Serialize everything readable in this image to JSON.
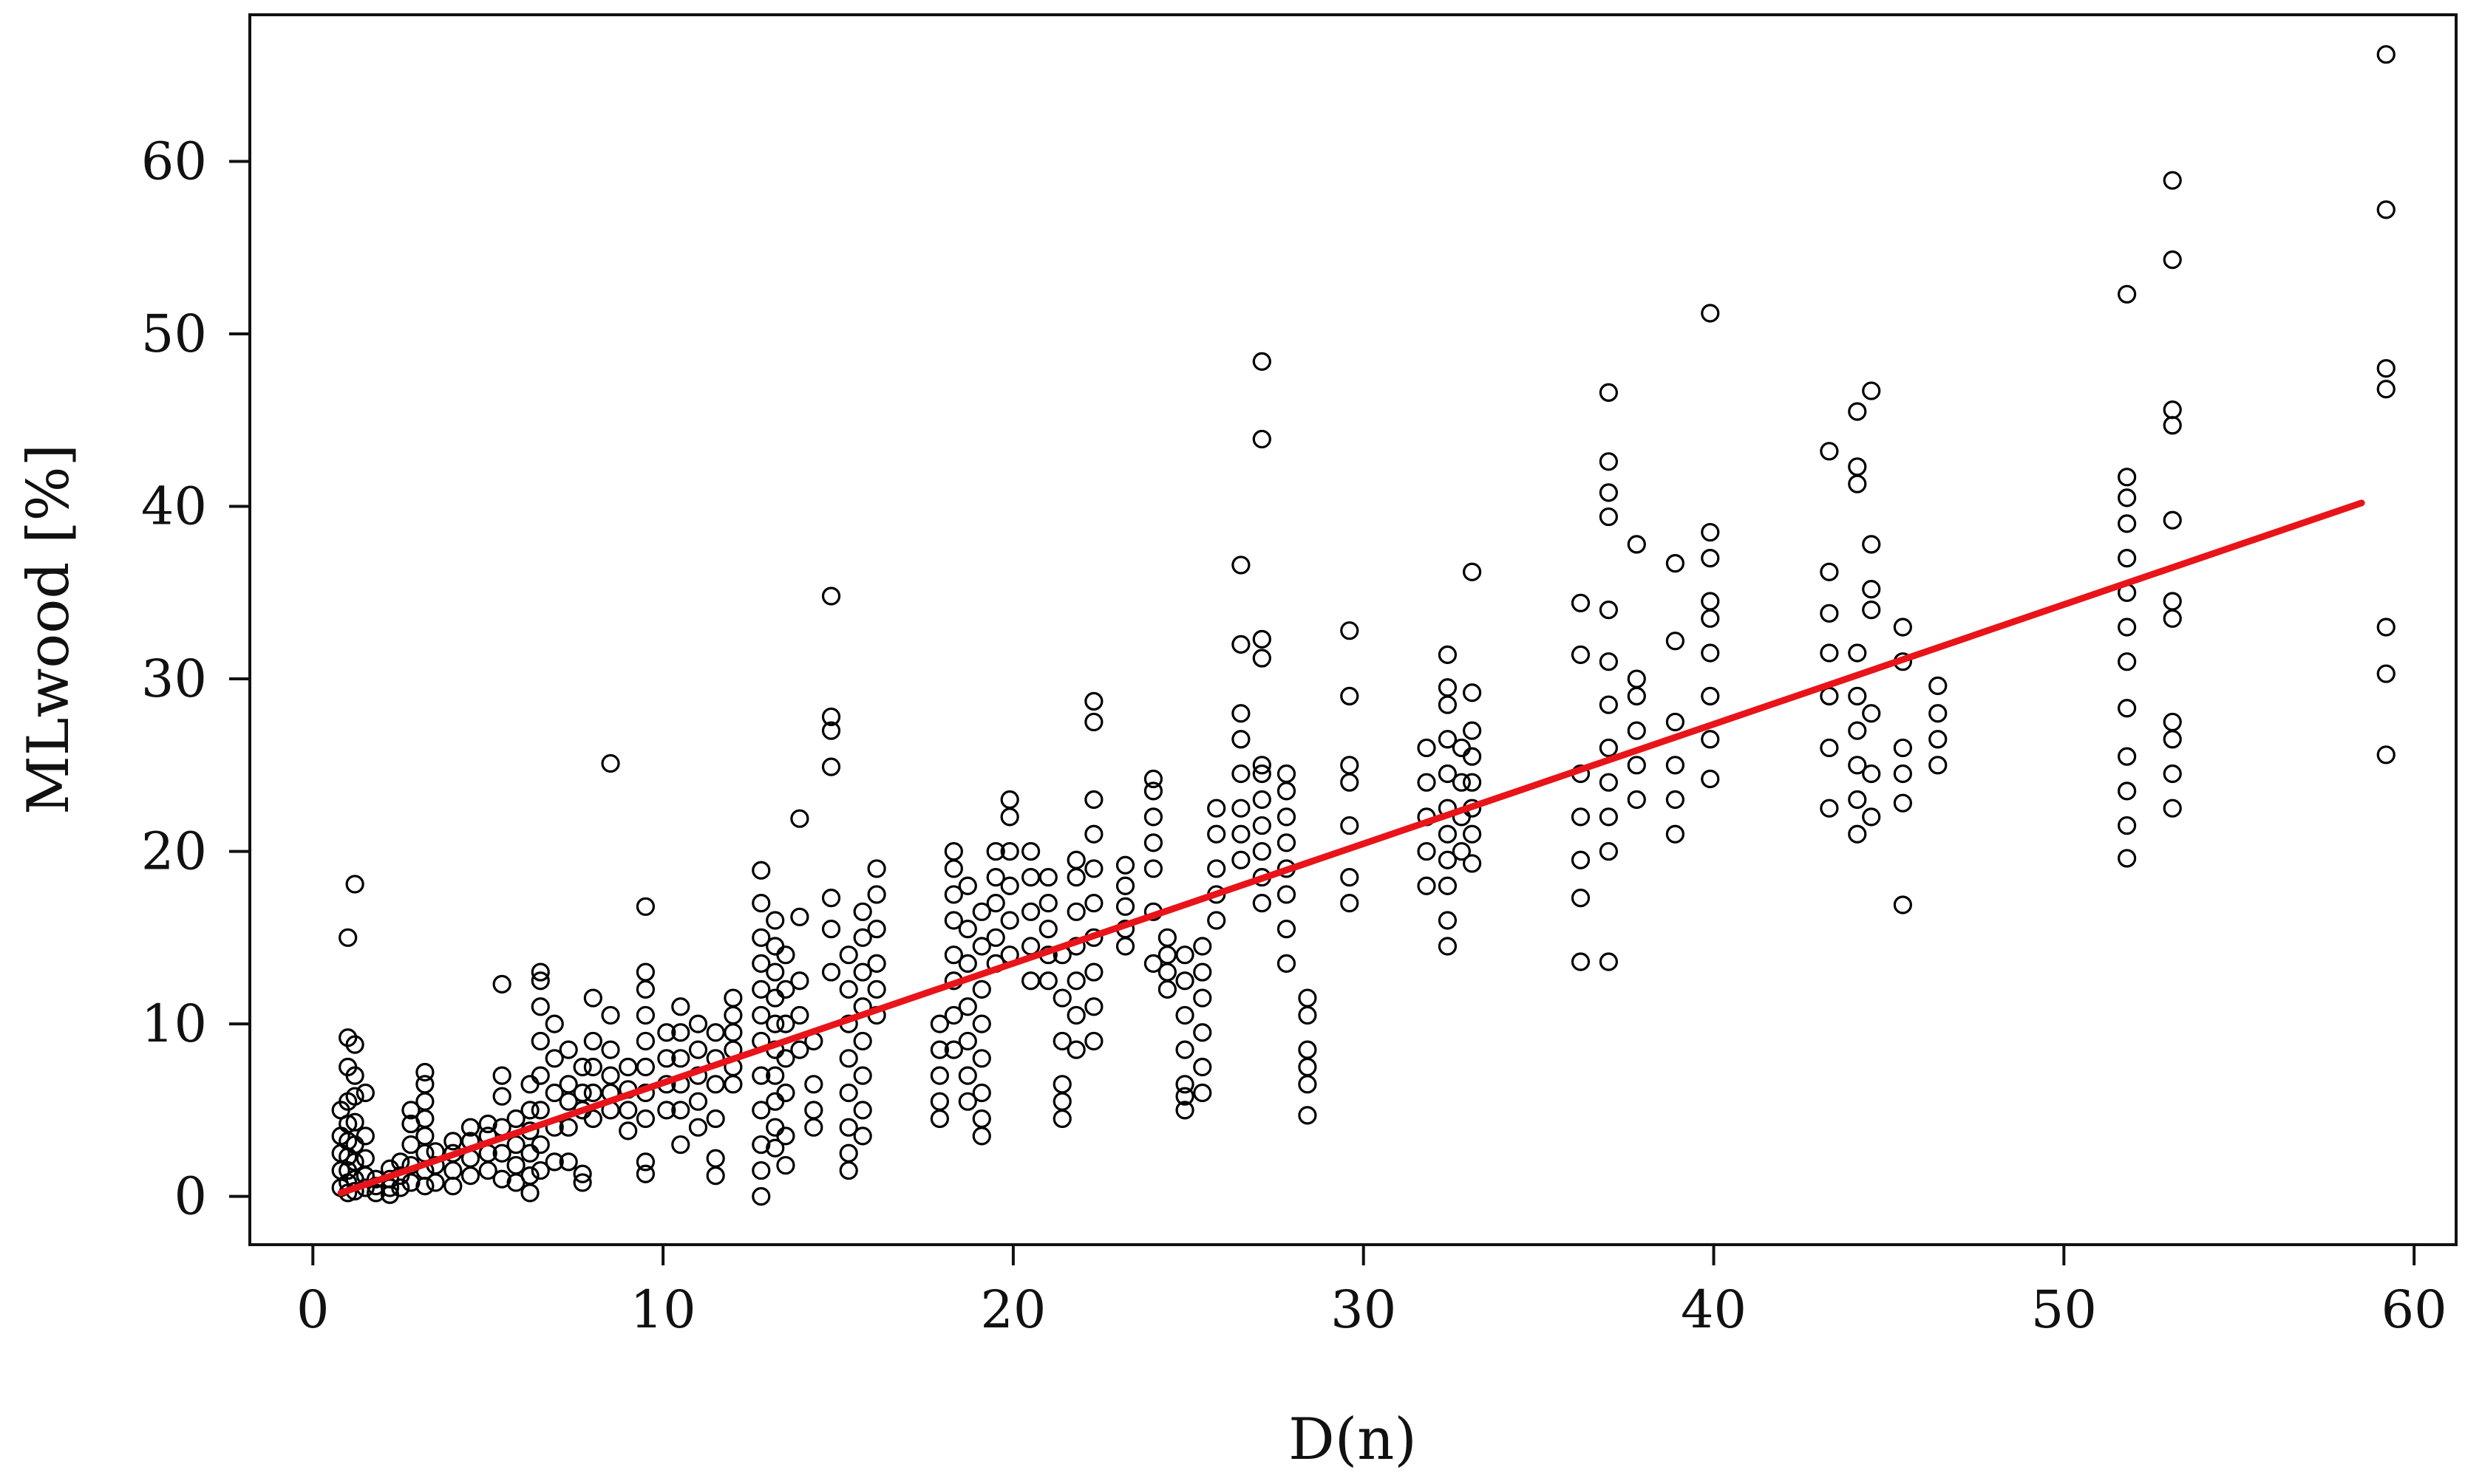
{
  "chart_data": {
    "type": "scatter",
    "title": "",
    "xlabel": "D(n)",
    "ylabel": "MLwood [%]",
    "xlim": [
      -1.8,
      61.2
    ],
    "ylim": [
      -2.8,
      68.5
    ],
    "xticks": [
      0,
      10,
      20,
      30,
      40,
      50,
      60
    ],
    "yticks": [
      0,
      10,
      20,
      30,
      40,
      50,
      60
    ],
    "grid": false,
    "legend": "none",
    "colors": {
      "points": "#000000",
      "fit_line": "#e8141a",
      "axes": "#111111"
    },
    "series": [
      {
        "kind": "points",
        "marker": "open-circle",
        "columns": [
          {
            "x": 0.8,
            "y": [
              0.5,
              1.5,
              2.5,
              3.5,
              5.0
            ]
          },
          {
            "x": 1.0,
            "y": [
              0.2,
              0.8,
              1.5,
              2.3,
              3.2,
              4.2,
              5.5,
              7.5,
              9.2,
              15.0
            ]
          },
          {
            "x": 1.2,
            "y": [
              0.3,
              1.0,
              2.0,
              3.0,
              4.3,
              5.8,
              7.0,
              8.8,
              18.1
            ]
          },
          {
            "x": 1.5,
            "y": [
              0.5,
              1.2,
              2.2,
              3.5,
              6.0
            ]
          },
          {
            "x": 1.8,
            "y": [
              0.2,
              0.6,
              1.0
            ]
          },
          {
            "x": 2.2,
            "y": [
              0.1,
              0.5,
              1.0,
              1.6
            ]
          },
          {
            "x": 2.5,
            "y": [
              0.5,
              1.2,
              2.0
            ]
          },
          {
            "x": 2.8,
            "y": [
              0.8,
              1.8,
              3.0,
              4.2,
              5.0
            ]
          },
          {
            "x": 3.2,
            "y": [
              0.6,
              1.5,
              2.5,
              3.5,
              4.5,
              5.5,
              6.5,
              7.2
            ]
          },
          {
            "x": 3.5,
            "y": [
              0.8,
              1.8,
              2.6
            ]
          },
          {
            "x": 4.0,
            "y": [
              0.6,
              1.5,
              2.5,
              3.2
            ]
          },
          {
            "x": 4.5,
            "y": [
              1.2,
              2.2,
              3.2,
              4.0
            ]
          },
          {
            "x": 5.0,
            "y": [
              1.5,
              2.5,
              3.5,
              4.2
            ]
          },
          {
            "x": 5.4,
            "y": [
              1.0,
              2.5,
              4.0,
              5.8,
              7.0,
              12.3
            ]
          },
          {
            "x": 5.8,
            "y": [
              0.8,
              1.8,
              3.0,
              4.5
            ]
          },
          {
            "x": 6.2,
            "y": [
              0.2,
              1.2,
              2.5,
              3.8,
              5.0,
              6.5
            ]
          },
          {
            "x": 6.5,
            "y": [
              1.5,
              3.0,
              5.0,
              7.0,
              9.0,
              11.0,
              12.5,
              13.0
            ]
          },
          {
            "x": 6.9,
            "y": [
              2.0,
              4.0,
              6.0,
              8.0,
              10.0
            ]
          },
          {
            "x": 7.3,
            "y": [
              2.0,
              4.0,
              5.5,
              6.5,
              8.5
            ]
          },
          {
            "x": 7.7,
            "y": [
              0.8,
              1.3,
              5.0,
              6.0,
              7.5
            ]
          },
          {
            "x": 8.0,
            "y": [
              4.5,
              6.0,
              7.5,
              9.0,
              11.5
            ]
          },
          {
            "x": 8.5,
            "y": [
              5.0,
              6.0,
              7.0,
              8.5,
              10.5,
              25.1
            ]
          },
          {
            "x": 9.0,
            "y": [
              3.8,
              5.0,
              6.2,
              7.5
            ]
          },
          {
            "x": 9.5,
            "y": [
              1.3,
              2.0,
              4.5,
              6.0,
              7.5,
              9.0,
              10.5,
              12.0,
              13.0,
              16.8
            ]
          },
          {
            "x": 10.1,
            "y": [
              5.0,
              6.5,
              8.0,
              9.5
            ]
          },
          {
            "x": 10.5,
            "y": [
              3.0,
              5.0,
              6.5,
              8.0,
              9.5,
              11.0
            ]
          },
          {
            "x": 11.0,
            "y": [
              4.0,
              5.5,
              7.0,
              8.5,
              10.0
            ]
          },
          {
            "x": 11.5,
            "y": [
              1.2,
              2.2,
              4.5,
              6.5,
              8.0,
              9.5
            ]
          },
          {
            "x": 12.0,
            "y": [
              6.5,
              7.5,
              8.5,
              9.5,
              10.5,
              11.5
            ]
          },
          {
            "x": 12.8,
            "y": [
              0.0,
              1.5,
              3.0,
              5.0,
              7.0,
              9.0,
              10.5,
              12.0,
              13.5,
              15.0,
              17.0,
              18.9
            ]
          },
          {
            "x": 13.2,
            "y": [
              2.8,
              4.0,
              5.5,
              7.0,
              8.5,
              10.0,
              11.5,
              13.0,
              14.5,
              16.0
            ]
          },
          {
            "x": 13.5,
            "y": [
              1.8,
              3.5,
              6.0,
              8.0,
              10.0,
              12.0,
              14.0
            ]
          },
          {
            "x": 13.9,
            "y": [
              8.5,
              10.5,
              12.5,
              16.2,
              21.9
            ]
          },
          {
            "x": 14.3,
            "y": [
              4.0,
              5.0,
              6.5,
              9.0
            ]
          },
          {
            "x": 14.8,
            "y": [
              13.0,
              15.5,
              17.3,
              24.9,
              27.0,
              27.8,
              34.8
            ]
          },
          {
            "x": 15.3,
            "y": [
              1.5,
              2.5,
              4.0,
              6.0,
              8.0,
              10.0,
              12.0,
              14.0
            ]
          },
          {
            "x": 15.7,
            "y": [
              3.5,
              5.0,
              7.0,
              9.0,
              11.0,
              13.0,
              15.0,
              16.5
            ]
          },
          {
            "x": 16.1,
            "y": [
              10.5,
              12.0,
              13.5,
              15.5,
              17.5,
              19.0
            ]
          },
          {
            "x": 17.9,
            "y": [
              4.5,
              5.5,
              7.0,
              8.5,
              10.0
            ]
          },
          {
            "x": 18.3,
            "y": [
              8.5,
              10.5,
              12.5,
              14.0,
              16.0,
              17.5,
              19.0,
              20.0
            ]
          },
          {
            "x": 18.7,
            "y": [
              5.5,
              7.0,
              9.0,
              11.0,
              13.5,
              15.5,
              18.0
            ]
          },
          {
            "x": 19.1,
            "y": [
              3.5,
              4.5,
              6.0,
              8.0,
              10.0,
              12.0,
              14.5,
              16.5
            ]
          },
          {
            "x": 19.5,
            "y": [
              13.5,
              15.0,
              17.0,
              18.5,
              20.0
            ]
          },
          {
            "x": 19.9,
            "y": [
              14.0,
              16.0,
              18.0,
              20.0,
              22.0,
              23.0
            ]
          },
          {
            "x": 20.5,
            "y": [
              12.5,
              14.5,
              16.5,
              18.5,
              20.0
            ]
          },
          {
            "x": 21.0,
            "y": [
              12.5,
              14.0,
              15.5,
              17.0,
              18.5
            ]
          },
          {
            "x": 21.4,
            "y": [
              4.5,
              5.5,
              6.5,
              9.0,
              11.5,
              14.0
            ]
          },
          {
            "x": 21.8,
            "y": [
              8.5,
              10.5,
              12.5,
              14.5,
              16.5,
              18.5,
              19.5
            ]
          },
          {
            "x": 22.3,
            "y": [
              9.0,
              11.0,
              13.0,
              15.0,
              17.0,
              19.0,
              21.0,
              23.0,
              27.5,
              28.7
            ]
          },
          {
            "x": 23.2,
            "y": [
              14.5,
              15.5,
              16.8,
              18.0,
              19.2
            ]
          },
          {
            "x": 24.0,
            "y": [
              13.5,
              16.5,
              19.0,
              20.5,
              22.0,
              23.5,
              24.2
            ]
          },
          {
            "x": 24.4,
            "y": [
              12.0,
              13.0,
              14.0,
              15.0
            ]
          },
          {
            "x": 24.9,
            "y": [
              5.0,
              5.8,
              6.5,
              8.5,
              10.5,
              12.5,
              14.0
            ]
          },
          {
            "x": 25.4,
            "y": [
              6.0,
              7.5,
              9.5,
              11.5,
              13.0,
              14.5
            ]
          },
          {
            "x": 25.8,
            "y": [
              16.0,
              17.5,
              19.0,
              21.0,
              22.5
            ]
          },
          {
            "x": 26.5,
            "y": [
              19.5,
              21.0,
              22.5,
              24.5,
              26.5,
              28.0,
              32.0,
              36.6
            ]
          },
          {
            "x": 27.1,
            "y": [
              17.0,
              18.5,
              20.0,
              21.5,
              23.0,
              24.5,
              25.0,
              31.2,
              32.3,
              43.9,
              48.4
            ]
          },
          {
            "x": 27.8,
            "y": [
              13.5,
              15.5,
              17.5,
              19.0,
              20.5,
              22.0,
              23.5,
              24.5
            ]
          },
          {
            "x": 28.4,
            "y": [
              4.7,
              6.5,
              7.5,
              8.5,
              10.5,
              11.5
            ]
          },
          {
            "x": 29.6,
            "y": [
              17.0,
              18.5,
              21.5,
              24.0,
              25.0,
              29.0,
              32.8
            ]
          },
          {
            "x": 31.8,
            "y": [
              18.0,
              20.0,
              22.0,
              24.0,
              26.0
            ]
          },
          {
            "x": 32.4,
            "y": [
              14.5,
              16.0,
              18.0,
              19.5,
              21.0,
              22.5,
              24.5,
              26.5,
              28.5,
              29.5,
              31.4
            ]
          },
          {
            "x": 32.8,
            "y": [
              20.0,
              22.0,
              24.0,
              26.0
            ]
          },
          {
            "x": 33.1,
            "y": [
              19.3,
              21.0,
              22.5,
              24.0,
              25.5,
              27.0,
              29.2,
              36.2
            ]
          },
          {
            "x": 36.2,
            "y": [
              13.6,
              17.3,
              19.5,
              22.0,
              24.5,
              31.4,
              34.4
            ]
          },
          {
            "x": 37.0,
            "y": [
              13.6,
              20.0,
              22.0,
              24.0,
              26.0,
              28.5,
              31.0,
              34.0,
              39.4,
              40.8,
              42.6,
              46.6
            ]
          },
          {
            "x": 37.8,
            "y": [
              23.0,
              25.0,
              27.0,
              29.0,
              30.0,
              37.8
            ]
          },
          {
            "x": 38.9,
            "y": [
              21.0,
              23.0,
              25.0,
              27.5,
              32.2,
              36.7
            ]
          },
          {
            "x": 39.9,
            "y": [
              24.2,
              26.5,
              29.0,
              31.5,
              33.5,
              34.5,
              37.0,
              38.5,
              51.2
            ]
          },
          {
            "x": 43.3,
            "y": [
              22.5,
              26.0,
              29.0,
              31.5,
              33.8,
              36.2,
              43.2
            ]
          },
          {
            "x": 44.1,
            "y": [
              21.0,
              23.0,
              25.0,
              27.0,
              29.0,
              31.5,
              41.3,
              42.3,
              45.5
            ]
          },
          {
            "x": 44.5,
            "y": [
              22.0,
              24.5,
              28.0,
              34.0,
              35.2,
              37.8,
              46.7
            ]
          },
          {
            "x": 45.4,
            "y": [
              16.9,
              22.8,
              24.5,
              26.0,
              31.0,
              33.0
            ]
          },
          {
            "x": 46.4,
            "y": [
              25.0,
              26.5,
              28.0,
              29.6
            ]
          },
          {
            "x": 51.8,
            "y": [
              19.6,
              21.5,
              23.5,
              25.5,
              28.3,
              31.0,
              33.0,
              35.0,
              37.0,
              39.0,
              40.5,
              41.7,
              52.3
            ]
          },
          {
            "x": 53.1,
            "y": [
              22.5,
              24.5,
              26.5,
              27.5,
              33.5,
              34.5,
              39.2,
              44.7,
              45.6,
              54.3,
              58.9
            ]
          },
          {
            "x": 59.2,
            "y": [
              25.6,
              30.3,
              33.0,
              46.8,
              48.0,
              57.2,
              66.2
            ]
          }
        ]
      },
      {
        "kind": "fit-line",
        "x": [
          0.8,
          58.5
        ],
        "y": [
          0.2,
          40.2
        ]
      }
    ]
  }
}
